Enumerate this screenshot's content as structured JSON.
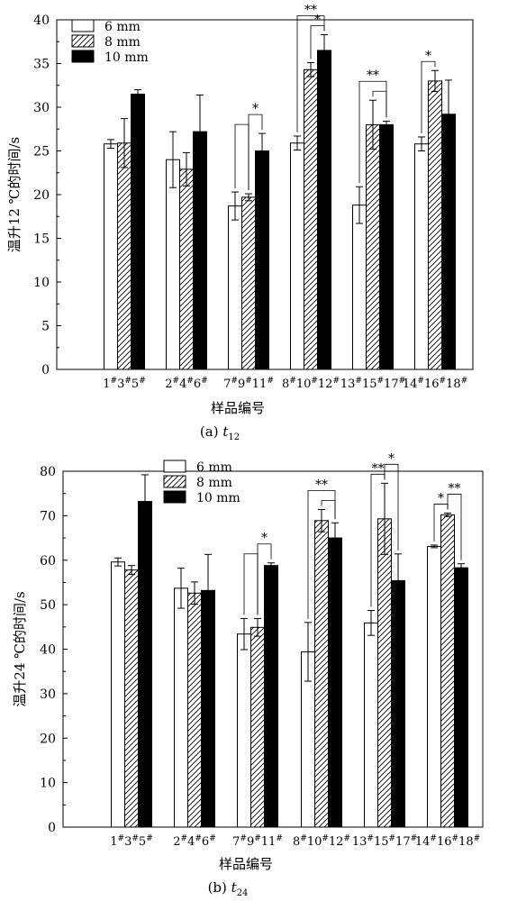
{
  "legend_labels": [
    "6 mm",
    "8 mm",
    "10 mm"
  ],
  "chart_data": [
    {
      "type": "bar",
      "caption_prefix": "(a) ",
      "caption_var": "t",
      "caption_sub": "12",
      "xlabel": "样品编号",
      "ylabel": "温升12 ℃的时间/s",
      "ylim": [
        0,
        40
      ],
      "yticks": [
        0,
        5,
        10,
        15,
        20,
        25,
        30,
        35,
        40
      ],
      "grid": false,
      "legend_position": "top-left",
      "categories": [
        [
          "1",
          "3",
          "5"
        ],
        [
          "2",
          "4",
          "6"
        ],
        [
          "7",
          "9",
          "11"
        ],
        [
          "8",
          "10",
          "12"
        ],
        [
          "13",
          "15",
          "17"
        ],
        [
          "14",
          "16",
          "18"
        ]
      ],
      "category_superscript": "#",
      "series": [
        {
          "name": "6 mm",
          "fill": "#ffffff",
          "values": [
            25.8,
            24.0,
            18.7,
            25.9,
            18.8,
            25.8
          ],
          "errors": [
            0.5,
            3.2,
            1.6,
            0.8,
            2.1,
            0.8
          ]
        },
        {
          "name": "8 mm",
          "fill": "hatch",
          "values": [
            25.9,
            22.9,
            19.7,
            34.3,
            28.0,
            33.0
          ],
          "errors": [
            2.8,
            1.9,
            0.4,
            0.8,
            2.8,
            1.2
          ]
        },
        {
          "name": "10 mm",
          "fill": "#000000",
          "values": [
            31.5,
            27.2,
            25.0,
            36.5,
            28.0,
            29.2
          ],
          "errors": [
            0.5,
            4.2,
            2.0,
            1.8,
            0.4,
            3.9
          ]
        }
      ],
      "significance": [
        {
          "group": 2,
          "from": 0,
          "to": 1,
          "label": ""
        },
        {
          "group": 2,
          "from": 1,
          "to": 2,
          "label": "*"
        },
        {
          "group": 3,
          "from": 0,
          "to": 2,
          "label": "**"
        },
        {
          "group": 3,
          "from": 1,
          "to": 2,
          "label": "*"
        },
        {
          "group": 4,
          "from": 0,
          "to": 2,
          "label": "**"
        },
        {
          "group": 4,
          "from": 1,
          "to": 2,
          "label": ""
        },
        {
          "group": 5,
          "from": 0,
          "to": 1,
          "label": "*"
        }
      ]
    },
    {
      "type": "bar",
      "caption_prefix": "(b) ",
      "caption_var": "t",
      "caption_sub": "24",
      "xlabel": "样品编号",
      "ylabel": "温升24 ℃的时间/s",
      "ylim": [
        0,
        80
      ],
      "yticks": [
        0,
        10,
        20,
        30,
        40,
        50,
        60,
        70,
        80
      ],
      "grid": false,
      "legend_position": "top-center",
      "categories": [
        [
          "1",
          "3",
          "5"
        ],
        [
          "2",
          "4",
          "6"
        ],
        [
          "7",
          "9",
          "11"
        ],
        [
          "8",
          "10",
          "12"
        ],
        [
          "13",
          "15",
          "17"
        ],
        [
          "14",
          "16",
          "18"
        ]
      ],
      "category_superscript": "#",
      "series": [
        {
          "name": "6 mm",
          "fill": "#ffffff",
          "values": [
            59.6,
            53.7,
            43.4,
            39.4,
            45.9,
            63.1
          ],
          "errors": [
            0.9,
            4.5,
            3.5,
            6.6,
            2.8,
            0.3
          ]
        },
        {
          "name": "8 mm",
          "fill": "hatch",
          "values": [
            57.8,
            52.6,
            44.9,
            68.9,
            69.3,
            70.2
          ],
          "errors": [
            1.0,
            2.5,
            2.0,
            2.5,
            8.0,
            0.4
          ]
        },
        {
          "name": "10 mm",
          "fill": "#000000",
          "values": [
            73.2,
            53.2,
            58.8,
            65.0,
            55.4,
            58.3
          ],
          "errors": [
            6.0,
            8.1,
            0.6,
            3.4,
            6.0,
            0.9
          ]
        }
      ],
      "significance": [
        {
          "group": 2,
          "from": 0,
          "to": 1,
          "label": ""
        },
        {
          "group": 2,
          "from": 1,
          "to": 2,
          "label": "*"
        },
        {
          "group": 3,
          "from": 0,
          "to": 2,
          "label": "**"
        },
        {
          "group": 3,
          "from": 1,
          "to": 2,
          "label": ""
        },
        {
          "group": 4,
          "from": 0,
          "to": 1,
          "label": "**"
        },
        {
          "group": 4,
          "from": 1,
          "to": 2,
          "label": "*"
        },
        {
          "group": 5,
          "from": 0,
          "to": 1,
          "label": "*"
        },
        {
          "group": 5,
          "from": 1,
          "to": 2,
          "label": "**"
        }
      ]
    }
  ]
}
